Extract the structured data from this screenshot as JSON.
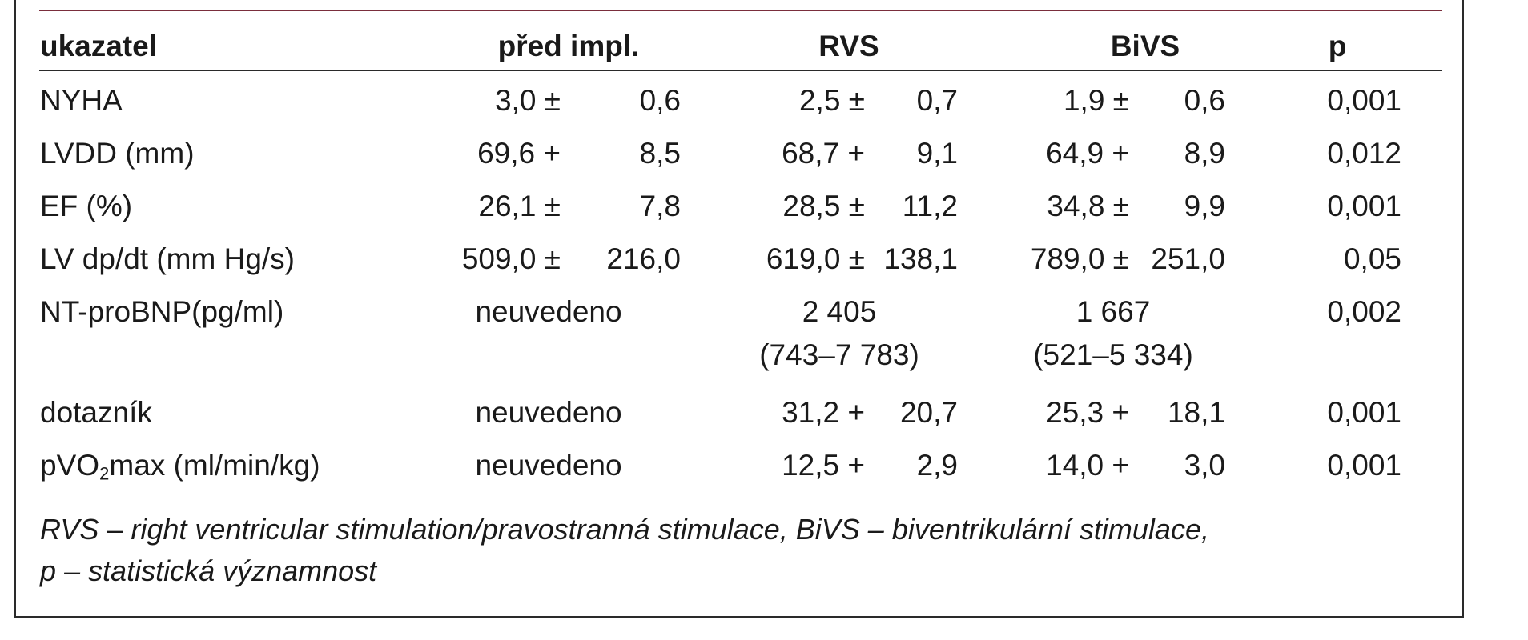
{
  "headers": {
    "indicator": "ukazatel",
    "before": "před impl.",
    "rvs": "RVS",
    "bivs": "BiVS",
    "p": "p"
  },
  "rows": {
    "nyha": {
      "label": "NYHA",
      "before_mean": "3,0 ±",
      "before_sd": "0,6",
      "rvs_mean": "2,5 ±",
      "rvs_sd": "0,7",
      "bivs_mean": "1,9 ±",
      "bivs_sd": "0,6",
      "p": "0,001"
    },
    "lvdd": {
      "label": "LVDD (mm)",
      "before_mean": "69,6 +",
      "before_sd": "8,5",
      "rvs_mean": "68,7 +",
      "rvs_sd": "9,1",
      "bivs_mean": "64,9 +",
      "bivs_sd": "8,9",
      "p": "0,012"
    },
    "ef": {
      "label": "EF (%)",
      "before_mean": "26,1 ±",
      "before_sd": "7,8",
      "rvs_mean": "28,5 ±",
      "rvs_sd": "11,2",
      "bivs_mean": "34,8 ±",
      "bivs_sd": "9,9",
      "p": "0,001"
    },
    "lvdpdt": {
      "label": "LV dp/dt (mm Hg/s)",
      "before_mean": "509,0 ±",
      "before_sd": "216,0",
      "rvs_mean": "619,0 ±",
      "rvs_sd": "138,1",
      "bivs_mean": "789,0 ±",
      "bivs_sd": "251,0",
      "p": "0,05"
    },
    "ntprobnp": {
      "label": "NT-proBNP(pg/ml)",
      "before": "neuvedeno",
      "rvs_median": "2 405",
      "rvs_range": "(743–7 783)",
      "bivs_median": "1 667",
      "bivs_range": "(521–5 334)",
      "p": "0,002"
    },
    "dotaznik": {
      "label": "dotazník",
      "before": "neuvedeno",
      "rvs_mean": "31,2 +",
      "rvs_sd": "20,7",
      "bivs_mean": "25,3 +",
      "bivs_sd": "18,1",
      "p": "0,001"
    },
    "pvo2": {
      "label_pre": "pVO",
      "label_sub": "2",
      "label_post": "max (ml/min/kg)",
      "before": "neuvedeno",
      "rvs_mean": "12,5 +",
      "rvs_sd": "2,9",
      "bivs_mean": "14,0 +",
      "bivs_sd": "3,0",
      "p": "0,001"
    }
  },
  "note": {
    "line1": "RVS – right ventricular stimulation/pravostranná stimulace, BiVS – biventrikulární stimulace,",
    "line2": "p – statistická významnost"
  }
}
